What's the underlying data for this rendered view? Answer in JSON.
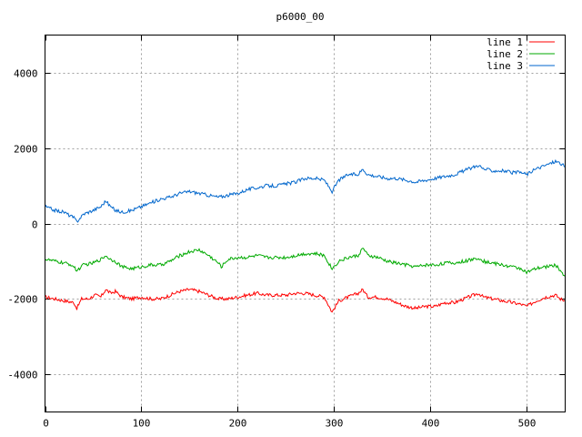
{
  "chart_data": {
    "type": "line",
    "title": "p6000_00",
    "xlabel": "",
    "ylabel": "",
    "xlim": [
      0,
      540
    ],
    "ylim": [
      -5000,
      5000
    ],
    "xticks": [
      0,
      100,
      200,
      300,
      400,
      500
    ],
    "yticks": [
      -4000,
      -2000,
      0,
      2000,
      4000
    ],
    "grid": true,
    "legend_position": "top-right",
    "series": [
      {
        "name": "line 1",
        "color": "#ff0000",
        "points": [
          [
            0,
            -1950
          ],
          [
            10,
            -2000
          ],
          [
            20,
            -2050
          ],
          [
            30,
            -2100
          ],
          [
            33,
            -2250
          ],
          [
            38,
            -2000
          ],
          [
            45,
            -2000
          ],
          [
            52,
            -1900
          ],
          [
            58,
            -1950
          ],
          [
            63,
            -1750
          ],
          [
            68,
            -1850
          ],
          [
            73,
            -1800
          ],
          [
            80,
            -1950
          ],
          [
            90,
            -2000
          ],
          [
            100,
            -1950
          ],
          [
            110,
            -2000
          ],
          [
            120,
            -2000
          ],
          [
            130,
            -1900
          ],
          [
            140,
            -1800
          ],
          [
            150,
            -1750
          ],
          [
            160,
            -1800
          ],
          [
            170,
            -1900
          ],
          [
            180,
            -2000
          ],
          [
            190,
            -2000
          ],
          [
            200,
            -1950
          ],
          [
            210,
            -1900
          ],
          [
            220,
            -1850
          ],
          [
            230,
            -1900
          ],
          [
            240,
            -1900
          ],
          [
            250,
            -1900
          ],
          [
            260,
            -1850
          ],
          [
            270,
            -1850
          ],
          [
            280,
            -1900
          ],
          [
            290,
            -1950
          ],
          [
            298,
            -2350
          ],
          [
            305,
            -2050
          ],
          [
            315,
            -1950
          ],
          [
            325,
            -1850
          ],
          [
            330,
            -1750
          ],
          [
            335,
            -1950
          ],
          [
            345,
            -1950
          ],
          [
            355,
            -2000
          ],
          [
            365,
            -2100
          ],
          [
            375,
            -2200
          ],
          [
            385,
            -2250
          ],
          [
            395,
            -2200
          ],
          [
            405,
            -2200
          ],
          [
            415,
            -2100
          ],
          [
            425,
            -2100
          ],
          [
            435,
            -2000
          ],
          [
            445,
            -1900
          ],
          [
            450,
            -1850
          ],
          [
            455,
            -1950
          ],
          [
            465,
            -2000
          ],
          [
            475,
            -2050
          ],
          [
            485,
            -2100
          ],
          [
            495,
            -2150
          ],
          [
            500,
            -2200
          ],
          [
            510,
            -2050
          ],
          [
            520,
            -1950
          ],
          [
            530,
            -1900
          ],
          [
            535,
            -2000
          ],
          [
            540,
            -2050
          ]
        ]
      },
      {
        "name": "line 2",
        "color": "#00aa00",
        "points": [
          [
            0,
            -950
          ],
          [
            10,
            -1000
          ],
          [
            20,
            -1050
          ],
          [
            28,
            -1100
          ],
          [
            33,
            -1250
          ],
          [
            40,
            -1100
          ],
          [
            50,
            -1050
          ],
          [
            58,
            -950
          ],
          [
            63,
            -850
          ],
          [
            68,
            -950
          ],
          [
            73,
            -1000
          ],
          [
            80,
            -1150
          ],
          [
            90,
            -1200
          ],
          [
            100,
            -1150
          ],
          [
            110,
            -1100
          ],
          [
            120,
            -1100
          ],
          [
            130,
            -1000
          ],
          [
            140,
            -850
          ],
          [
            150,
            -750
          ],
          [
            160,
            -700
          ],
          [
            170,
            -850
          ],
          [
            180,
            -1050
          ],
          [
            183,
            -1150
          ],
          [
            190,
            -950
          ],
          [
            200,
            -900
          ],
          [
            210,
            -900
          ],
          [
            220,
            -850
          ],
          [
            230,
            -900
          ],
          [
            240,
            -900
          ],
          [
            250,
            -900
          ],
          [
            260,
            -850
          ],
          [
            270,
            -800
          ],
          [
            280,
            -800
          ],
          [
            290,
            -850
          ],
          [
            298,
            -1200
          ],
          [
            305,
            -1000
          ],
          [
            315,
            -900
          ],
          [
            325,
            -850
          ],
          [
            330,
            -650
          ],
          [
            335,
            -850
          ],
          [
            345,
            -900
          ],
          [
            355,
            -1000
          ],
          [
            365,
            -1050
          ],
          [
            375,
            -1100
          ],
          [
            385,
            -1150
          ],
          [
            395,
            -1100
          ],
          [
            405,
            -1100
          ],
          [
            415,
            -1050
          ],
          [
            425,
            -1050
          ],
          [
            435,
            -1000
          ],
          [
            445,
            -950
          ],
          [
            450,
            -900
          ],
          [
            455,
            -1000
          ],
          [
            465,
            -1050
          ],
          [
            475,
            -1100
          ],
          [
            485,
            -1150
          ],
          [
            495,
            -1200
          ],
          [
            500,
            -1300
          ],
          [
            510,
            -1200
          ],
          [
            520,
            -1150
          ],
          [
            530,
            -1100
          ],
          [
            535,
            -1250
          ],
          [
            540,
            -1400
          ]
        ]
      },
      {
        "name": "line 3",
        "color": "#0066cc",
        "points": [
          [
            0,
            450
          ],
          [
            10,
            350
          ],
          [
            20,
            300
          ],
          [
            30,
            150
          ],
          [
            33,
            50
          ],
          [
            40,
            250
          ],
          [
            50,
            350
          ],
          [
            58,
            450
          ],
          [
            63,
            600
          ],
          [
            68,
            450
          ],
          [
            73,
            350
          ],
          [
            80,
            300
          ],
          [
            90,
            350
          ],
          [
            100,
            450
          ],
          [
            110,
            550
          ],
          [
            120,
            650
          ],
          [
            130,
            700
          ],
          [
            140,
            800
          ],
          [
            150,
            850
          ],
          [
            160,
            800
          ],
          [
            170,
            750
          ],
          [
            180,
            700
          ],
          [
            190,
            750
          ],
          [
            200,
            800
          ],
          [
            210,
            900
          ],
          [
            220,
            950
          ],
          [
            230,
            1000
          ],
          [
            240,
            1000
          ],
          [
            250,
            1050
          ],
          [
            260,
            1100
          ],
          [
            270,
            1200
          ],
          [
            280,
            1200
          ],
          [
            290,
            1150
          ],
          [
            298,
            850
          ],
          [
            305,
            1150
          ],
          [
            315,
            1300
          ],
          [
            325,
            1300
          ],
          [
            330,
            1450
          ],
          [
            335,
            1300
          ],
          [
            345,
            1250
          ],
          [
            355,
            1200
          ],
          [
            365,
            1200
          ],
          [
            375,
            1150
          ],
          [
            385,
            1100
          ],
          [
            395,
            1150
          ],
          [
            405,
            1200
          ],
          [
            415,
            1250
          ],
          [
            425,
            1300
          ],
          [
            435,
            1400
          ],
          [
            445,
            1500
          ],
          [
            450,
            1550
          ],
          [
            455,
            1450
          ],
          [
            465,
            1400
          ],
          [
            475,
            1400
          ],
          [
            485,
            1350
          ],
          [
            495,
            1350
          ],
          [
            500,
            1300
          ],
          [
            510,
            1450
          ],
          [
            520,
            1550
          ],
          [
            530,
            1650
          ],
          [
            535,
            1600
          ],
          [
            540,
            1500
          ]
        ]
      }
    ]
  }
}
